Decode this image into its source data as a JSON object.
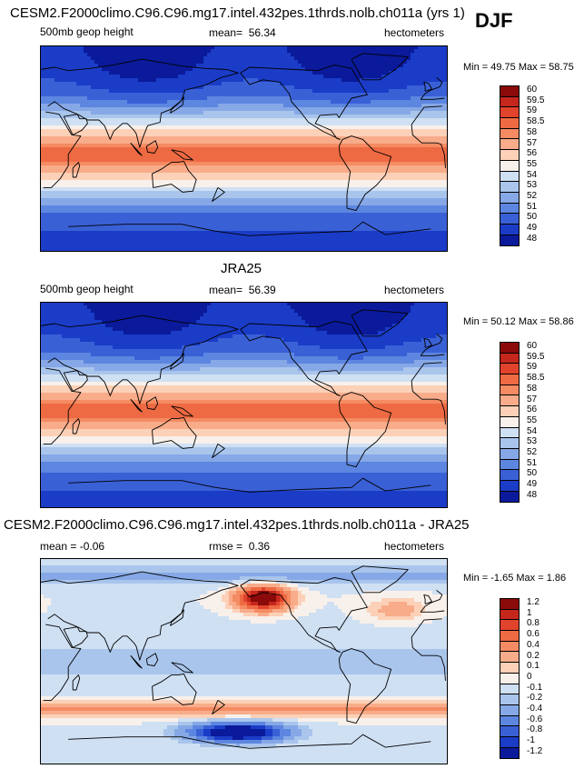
{
  "season": "DJF",
  "panels": [
    {
      "title": "CESM2.F2000climo.C96.C96.mg17.intel.432pes.1thrds.nolb.ch011a (yrs 1)",
      "left_label": "500mb geop height",
      "mean_label": "mean=",
      "mean_value": "56.34",
      "right_label": "hectometers",
      "minmax": "Min =  49.75 Max =  58.75",
      "colorbar_levels": [
        "60",
        "59.5",
        "59",
        "58.5",
        "58",
        "57",
        "56",
        "55",
        "54",
        "53",
        "52",
        "51",
        "50",
        "49",
        "48"
      ],
      "colorbar_colors": [
        "#8b0a0a",
        "#c5271d",
        "#e2432c",
        "#ee6a43",
        "#f48b62",
        "#f8ac8a",
        "#fcd1b8",
        "#f8f0ea",
        "#cfe0f3",
        "#a9c5ec",
        "#86a8e6",
        "#5d86e0",
        "#3a60d6",
        "#1a3cc7",
        "#0a1a9a"
      ],
      "colorbar_range": [
        48,
        60
      ],
      "field": "height"
    },
    {
      "title": "JRA25",
      "left_label": "500mb geop height",
      "mean_label": "mean=",
      "mean_value": "56.39",
      "right_label": "hectometers",
      "minmax": "Min =  50.12 Max =  58.86",
      "colorbar_levels": [
        "60",
        "59.5",
        "59",
        "58.5",
        "58",
        "57",
        "56",
        "55",
        "54",
        "53",
        "52",
        "51",
        "50",
        "49",
        "48"
      ],
      "colorbar_colors": [
        "#8b0a0a",
        "#c5271d",
        "#e2432c",
        "#ee6a43",
        "#f48b62",
        "#f8ac8a",
        "#fcd1b8",
        "#f8f0ea",
        "#cfe0f3",
        "#a9c5ec",
        "#86a8e6",
        "#5d86e0",
        "#3a60d6",
        "#1a3cc7",
        "#0a1a9a"
      ],
      "colorbar_range": [
        48,
        60
      ],
      "field": "height"
    },
    {
      "title": "CESM2.F2000climo.C96.C96.mg17.intel.432pes.1thrds.nolb.ch011a - JRA25",
      "left_label": "mean =  -0.06",
      "mean_label": "rmse =",
      "mean_value": "0.36",
      "right_label": "hectometers",
      "minmax": "Min =  -1.65 Max =   1.86",
      "colorbar_levels": [
        "1.2",
        "1",
        "0.8",
        "0.6",
        "0.4",
        "0.2",
        "0.1",
        "0",
        "-0.1",
        "-0.2",
        "-0.4",
        "-0.6",
        "-0.8",
        "-1",
        "-1.2"
      ],
      "colorbar_colors": [
        "#8b0a0a",
        "#c5271d",
        "#e2432c",
        "#ee6a43",
        "#f48b62",
        "#f8ac8a",
        "#fcd1b8",
        "#f8f0ea",
        "#cfe0f3",
        "#a9c5ec",
        "#86a8e6",
        "#5d86e0",
        "#3a60d6",
        "#1a3cc7",
        "#0a1a9a"
      ],
      "colorbar_range": [
        -1.2,
        1.2
      ],
      "field": "difference"
    }
  ]
}
